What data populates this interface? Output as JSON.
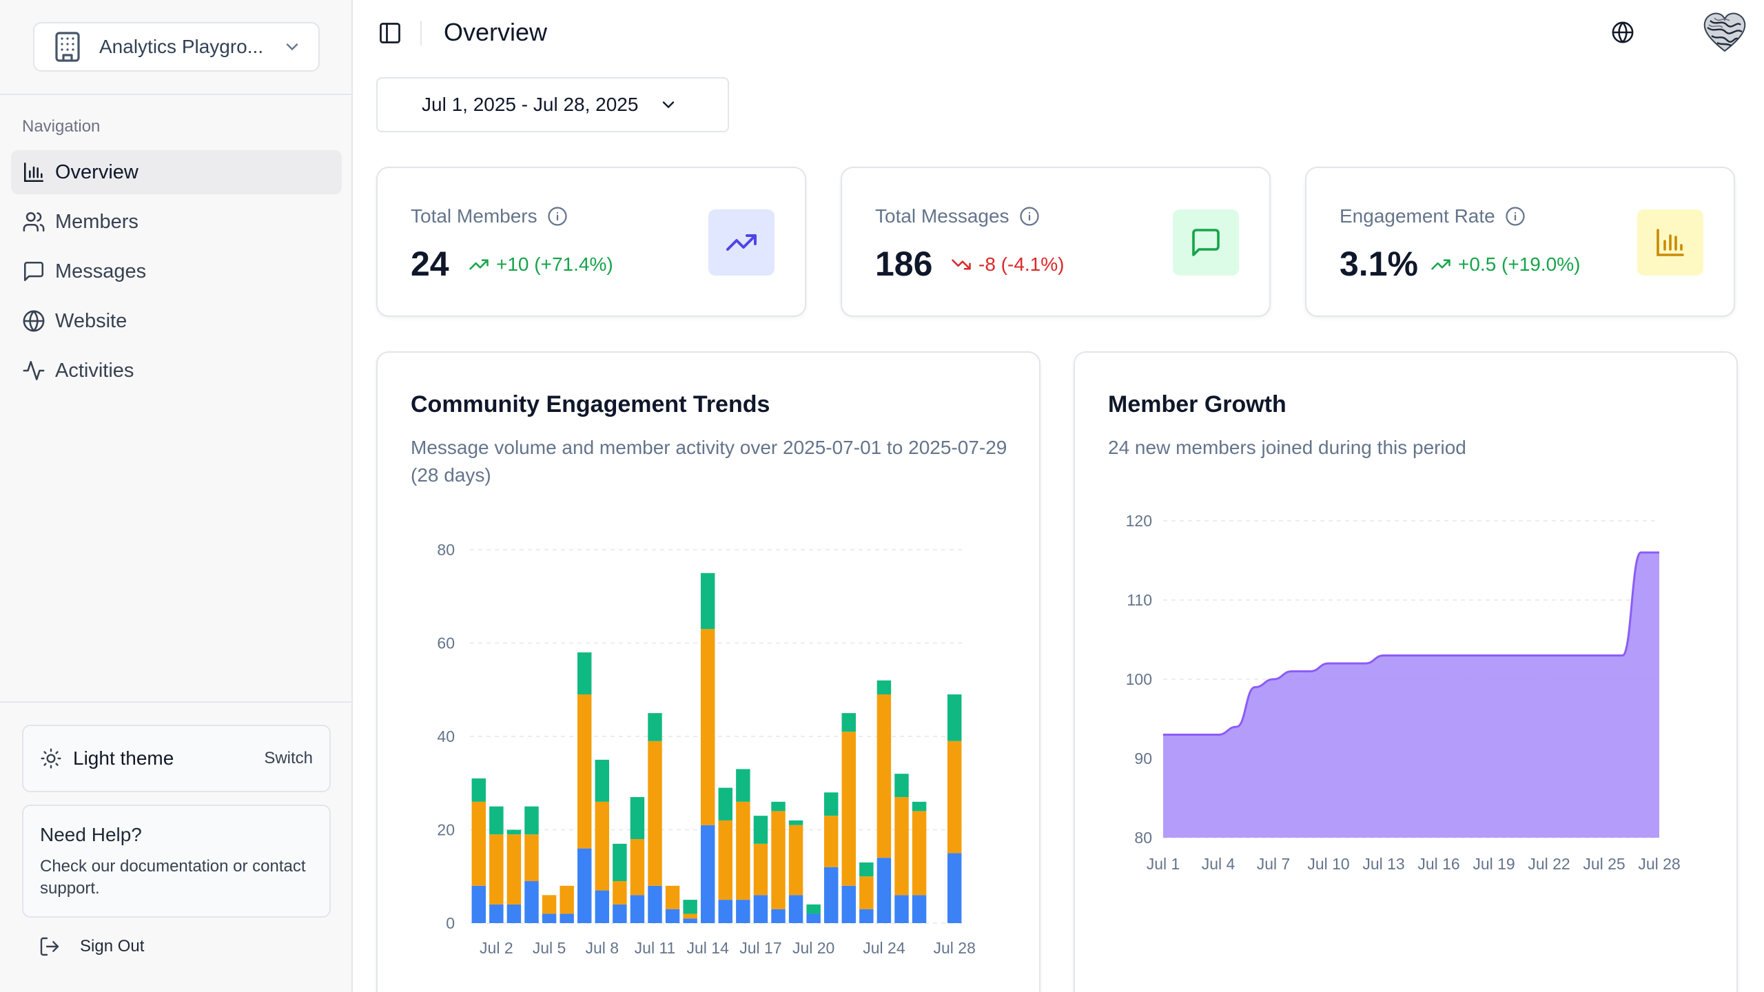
{
  "sidebar": {
    "workspace_name": "Analytics Playgro...",
    "nav_label": "Navigation",
    "items": [
      {
        "label": "Overview",
        "icon": "bar-chart-icon",
        "active": true
      },
      {
        "label": "Members",
        "icon": "users-icon"
      },
      {
        "label": "Messages",
        "icon": "message-icon"
      },
      {
        "label": "Website",
        "icon": "globe-icon"
      },
      {
        "label": "Activities",
        "icon": "activity-icon"
      }
    ],
    "theme": {
      "label": "Light theme",
      "switch_label": "Switch"
    },
    "help": {
      "title": "Need Help?",
      "text": "Check our documentation or contact support."
    },
    "sign_out": "Sign Out"
  },
  "header": {
    "title": "Overview"
  },
  "date_range": "Jul 1, 2025 - Jul 28, 2025",
  "stats": [
    {
      "label": "Total Members",
      "value": "24",
      "change": "+10 (+71.4%)",
      "trend": "up",
      "icon": "trending-up-icon",
      "icon_bg": "#e0e7ff",
      "icon_color": "#4f46e5"
    },
    {
      "label": "Total Messages",
      "value": "186",
      "change": "-8 (-4.1%)",
      "trend": "down",
      "icon": "message-icon",
      "icon_bg": "#dcfce7",
      "icon_color": "#16a34a"
    },
    {
      "label": "Engagement Rate",
      "value": "3.1%",
      "change": "+0.5 (+19.0%)",
      "trend": "up",
      "icon": "bar-chart-icon",
      "icon_bg": "#fef9c3",
      "icon_color": "#ca8a04"
    }
  ],
  "chart_data": [
    {
      "type": "bar",
      "stacked": true,
      "title": "Community Engagement Trends",
      "subtitle": "Message volume and member activity over 2025-07-01 to 2025-07-29 (28 days)",
      "ylim": [
        0,
        80
      ],
      "yticks": [
        0,
        20,
        40,
        60,
        80
      ],
      "grid": true,
      "xtick_labels": [
        {
          "index": 1,
          "label": "Jul 2"
        },
        {
          "index": 4,
          "label": "Jul 5"
        },
        {
          "index": 7,
          "label": "Jul 8"
        },
        {
          "index": 10,
          "label": "Jul 11"
        },
        {
          "index": 13,
          "label": "Jul 14"
        },
        {
          "index": 16,
          "label": "Jul 17"
        },
        {
          "index": 19,
          "label": "Jul 20"
        },
        {
          "index": 23,
          "label": "Jul 24"
        },
        {
          "index": 27,
          "label": "Jul 28"
        }
      ],
      "categories": [
        "Jul 1",
        "Jul 2",
        "Jul 3",
        "Jul 4",
        "Jul 5",
        "Jul 6",
        "Jul 7",
        "Jul 8",
        "Jul 9",
        "Jul 10",
        "Jul 11",
        "Jul 12",
        "Jul 13",
        "Jul 14",
        "Jul 15",
        "Jul 16",
        "Jul 17",
        "Jul 18",
        "Jul 19",
        "Jul 20",
        "Jul 21",
        "Jul 22",
        "Jul 23",
        "Jul 24",
        "Jul 25",
        "Jul 26",
        "Jul 27",
        "Jul 28"
      ],
      "series": [
        {
          "name": "blue",
          "color": "#3b82f6",
          "values": [
            8,
            4,
            4,
            9,
            2,
            2,
            16,
            7,
            4,
            6,
            8,
            3,
            1,
            21,
            5,
            5,
            6,
            3,
            6,
            2,
            12,
            8,
            3,
            14,
            6,
            6,
            0,
            15
          ]
        },
        {
          "name": "orange",
          "color": "#f59e0b",
          "values": [
            18,
            15,
            15,
            10,
            4,
            6,
            33,
            19,
            5,
            12,
            31,
            5,
            1,
            42,
            17,
            21,
            11,
            21,
            15,
            0,
            11,
            33,
            7,
            35,
            21,
            18,
            0,
            24
          ]
        },
        {
          "name": "green",
          "color": "#10b981",
          "values": [
            5,
            6,
            1,
            6,
            0,
            0,
            9,
            9,
            8,
            9,
            6,
            0,
            3,
            12,
            7,
            7,
            6,
            2,
            1,
            2,
            5,
            4,
            3,
            3,
            5,
            2,
            0,
            10
          ]
        }
      ]
    },
    {
      "type": "area",
      "title": "Member Growth",
      "subtitle": "24 new members joined during this period",
      "color": "#a78bfa",
      "line_color": "#8b5cf6",
      "ylim": [
        80,
        120
      ],
      "yticks": [
        80,
        90,
        100,
        110,
        120
      ],
      "grid": true,
      "xtick_labels": [
        "Jul 1",
        "Jul 4",
        "Jul 7",
        "Jul 10",
        "Jul 13",
        "Jul 16",
        "Jul 19",
        "Jul 22",
        "Jul 25",
        "Jul 28"
      ],
      "x": [
        "Jul 1",
        "Jul 2",
        "Jul 3",
        "Jul 4",
        "Jul 5",
        "Jul 6",
        "Jul 7",
        "Jul 8",
        "Jul 9",
        "Jul 10",
        "Jul 11",
        "Jul 12",
        "Jul 13",
        "Jul 14",
        "Jul 15",
        "Jul 16",
        "Jul 17",
        "Jul 18",
        "Jul 19",
        "Jul 20",
        "Jul 21",
        "Jul 22",
        "Jul 23",
        "Jul 24",
        "Jul 25",
        "Jul 26",
        "Jul 27",
        "Jul 28"
      ],
      "values": [
        93,
        93,
        93,
        93,
        94,
        99,
        100,
        101,
        101,
        102,
        102,
        102,
        103,
        103,
        103,
        103,
        103,
        103,
        103,
        103,
        103,
        103,
        103,
        103,
        103,
        103,
        116,
        116
      ]
    }
  ]
}
